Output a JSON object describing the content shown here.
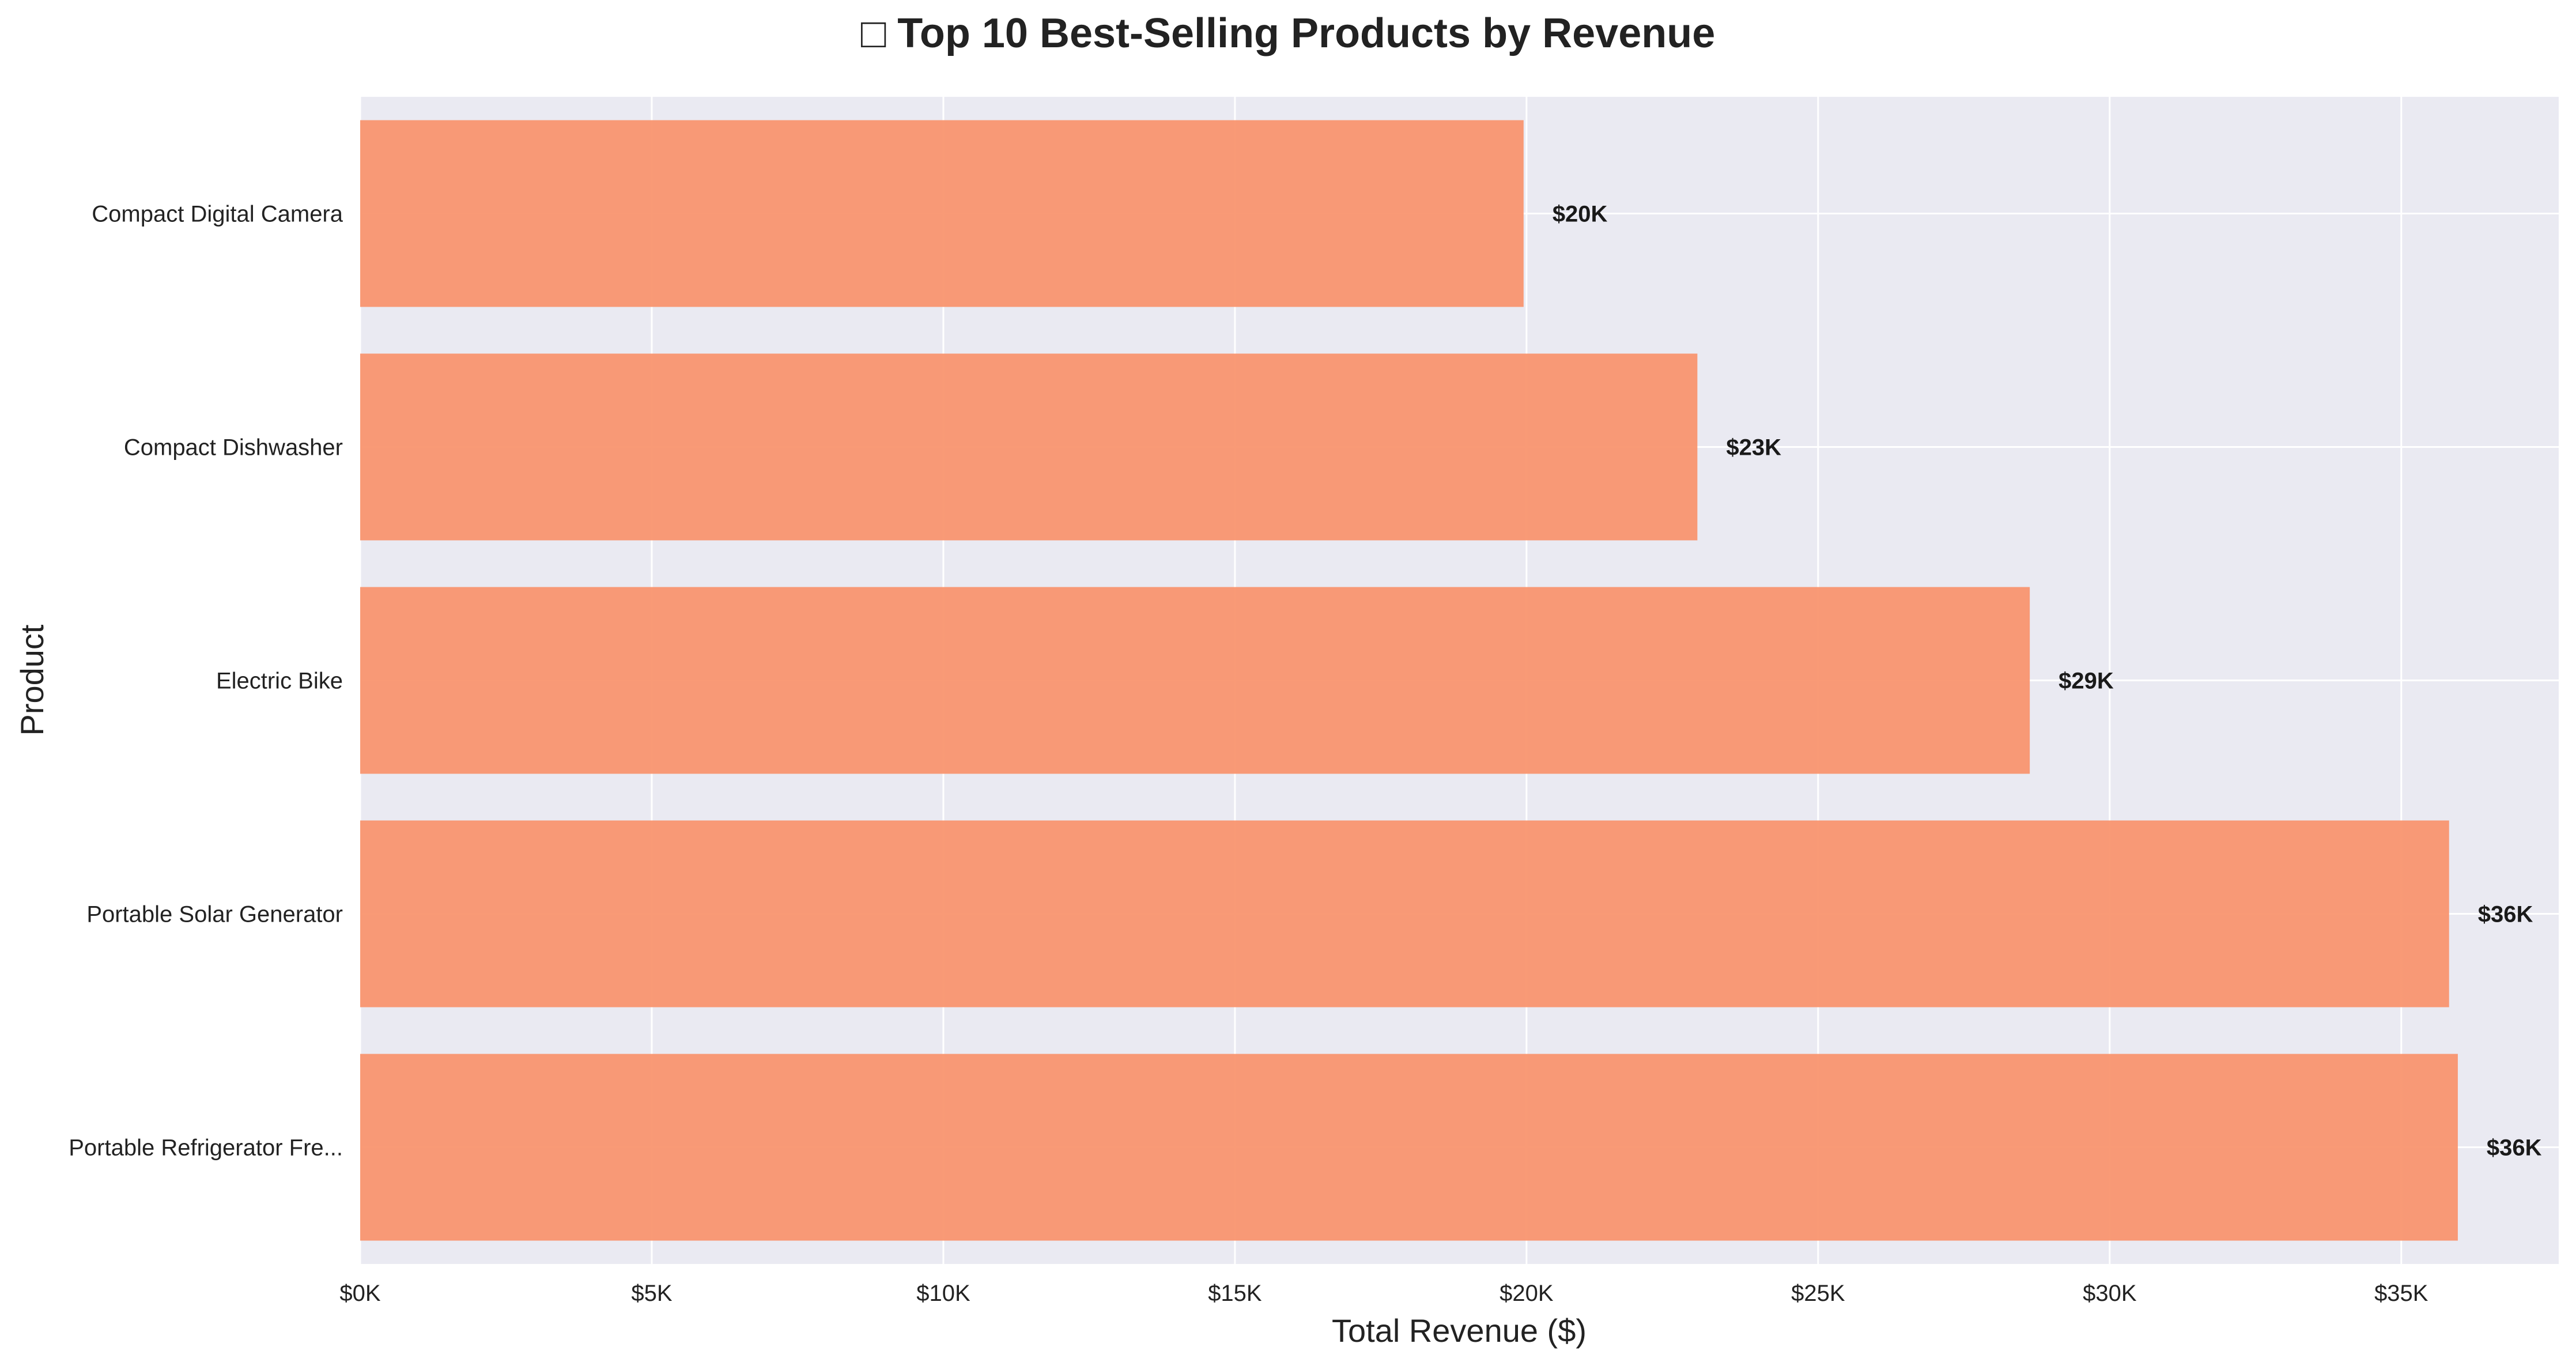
{
  "chart_data": {
    "type": "bar",
    "orientation": "horizontal",
    "title": "□ Top 10 Best-Selling Products by Revenue",
    "xlabel": "Total Revenue ($)",
    "ylabel": "Product",
    "xlim": [
      0,
      37700
    ],
    "xticks": [
      0,
      5000,
      10000,
      15000,
      20000,
      25000,
      30000,
      35000
    ],
    "xtick_labels": [
      "$0K",
      "$5K",
      "$10K",
      "$15K",
      "$20K",
      "$25K",
      "$30K",
      "$35K"
    ],
    "categories": [
      "Compact Digital Camera",
      "Compact Dishwasher",
      "Electric Bike",
      "Portable Solar Generator",
      "Portable Refrigerator Fre..."
    ],
    "values": [
      19950,
      22930,
      28630,
      35820,
      35970
    ],
    "data_labels": [
      "$20K",
      "$23K",
      "$29K",
      "$36K",
      "$36K"
    ],
    "bar_color": "#f9956f",
    "plot_background": "#eaeaf2",
    "grid": true,
    "legend": "none"
  }
}
